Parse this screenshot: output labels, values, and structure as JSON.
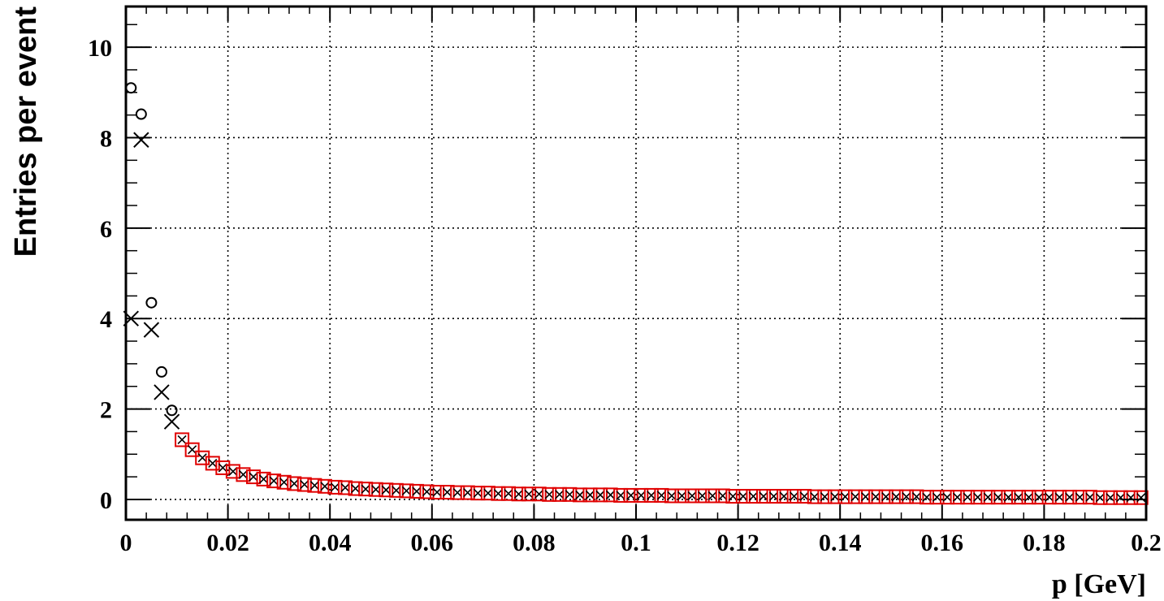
{
  "chart_data": {
    "type": "scatter",
    "title": "",
    "xlabel": "p [GeV]",
    "ylabel": "Entries per event",
    "xlim": [
      0,
      0.2
    ],
    "ylim": [
      -0.45,
      10.9
    ],
    "x_ticks": [
      0,
      0.02,
      0.04,
      0.06,
      0.08,
      0.1,
      0.12,
      0.14,
      0.16,
      0.18,
      0.2
    ],
    "x_tick_labels": [
      "0",
      "0.02",
      "0.04",
      "0.06",
      "0.08",
      "0.1",
      "0.12",
      "0.14",
      "0.16",
      "0.18",
      "0.2"
    ],
    "y_ticks": [
      0,
      2,
      4,
      6,
      8,
      10
    ],
    "y_tick_labels": [
      "0",
      "2",
      "4",
      "6",
      "8",
      "10"
    ],
    "grid": true,
    "legend": "none",
    "series": [
      {
        "marker": "open-circle",
        "color": "#000000",
        "x": [
          0.001,
          0.003,
          0.005,
          0.007,
          0.009
        ],
        "y": [
          9.1,
          8.52,
          4.35,
          2.82,
          1.97
        ]
      },
      {
        "marker": "x-cross",
        "color": "#000000",
        "x": [
          0.001,
          0.003,
          0.005,
          0.007,
          0.009
        ],
        "y": [
          4.0,
          7.95,
          3.75,
          2.37,
          1.72
        ]
      },
      {
        "marker": "open-square",
        "color": "#e00000",
        "x": [
          0.011,
          0.013,
          0.015,
          0.017,
          0.019,
          0.021,
          0.023,
          0.025,
          0.027,
          0.029,
          0.031,
          0.033,
          0.035,
          0.037,
          0.039,
          0.041,
          0.043,
          0.045,
          0.047,
          0.049,
          0.051,
          0.053,
          0.055,
          0.057,
          0.059,
          0.061,
          0.063,
          0.065,
          0.067,
          0.069,
          0.071,
          0.073,
          0.075,
          0.077,
          0.079,
          0.081,
          0.083,
          0.085,
          0.087,
          0.089,
          0.091,
          0.093,
          0.095,
          0.097,
          0.099,
          0.101,
          0.103,
          0.105,
          0.107,
          0.109,
          0.111,
          0.113,
          0.115,
          0.117,
          0.119,
          0.121,
          0.123,
          0.125,
          0.127,
          0.129,
          0.131,
          0.133,
          0.135,
          0.137,
          0.139,
          0.141,
          0.143,
          0.145,
          0.147,
          0.149,
          0.151,
          0.153,
          0.155,
          0.157,
          0.159,
          0.161,
          0.163,
          0.165,
          0.167,
          0.169,
          0.171,
          0.173,
          0.175,
          0.177,
          0.179,
          0.181,
          0.183,
          0.185,
          0.187,
          0.189,
          0.191,
          0.193,
          0.195,
          0.197,
          0.199
        ],
        "y": [
          1.32,
          1.1,
          0.92,
          0.8,
          0.7,
          0.62,
          0.55,
          0.5,
          0.45,
          0.41,
          0.38,
          0.35,
          0.33,
          0.31,
          0.29,
          0.27,
          0.26,
          0.24,
          0.23,
          0.22,
          0.21,
          0.2,
          0.19,
          0.18,
          0.17,
          0.16,
          0.16,
          0.15,
          0.15,
          0.14,
          0.14,
          0.13,
          0.13,
          0.12,
          0.12,
          0.12,
          0.11,
          0.11,
          0.11,
          0.1,
          0.1,
          0.1,
          0.1,
          0.09,
          0.09,
          0.09,
          0.09,
          0.09,
          0.08,
          0.08,
          0.08,
          0.08,
          0.08,
          0.08,
          0.07,
          0.07,
          0.07,
          0.07,
          0.07,
          0.07,
          0.07,
          0.07,
          0.06,
          0.06,
          0.06,
          0.06,
          0.06,
          0.06,
          0.06,
          0.06,
          0.06,
          0.06,
          0.06,
          0.05,
          0.05,
          0.05,
          0.05,
          0.05,
          0.05,
          0.05,
          0.05,
          0.05,
          0.05,
          0.05,
          0.05,
          0.05,
          0.05,
          0.05,
          0.05,
          0.05,
          0.04,
          0.04,
          0.04,
          0.04,
          0.04
        ]
      }
    ]
  }
}
